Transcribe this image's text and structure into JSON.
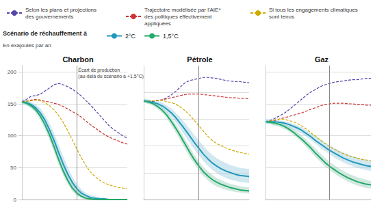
{
  "chart_data": [
    {
      "type": "line",
      "title": "Charbon",
      "y_label": "En exajoules par an",
      "legend": "top",
      "legend_title": "Scénario de réchauffement à",
      "grid": true,
      "tick_labels": "y",
      "x": [
        0,
        1,
        2,
        3,
        4,
        5,
        6,
        7,
        8,
        9,
        10,
        11,
        12,
        13,
        14,
        15,
        16,
        17,
        18,
        19,
        20,
        21,
        22,
        23
      ],
      "xlim": [
        0,
        23
      ],
      "ylim": [
        0,
        210
      ],
      "yticks": [
        0,
        50,
        100,
        150,
        200
      ],
      "vline": 12,
      "annotations": [
        {
          "text": "Écart de production\n(au-delà du scénario à +1,5°C)",
          "x": 12
        }
      ],
      "series": [
        {
          "name": "Selon les plans et projections\ndes gouvernements",
          "color": "#5544aa",
          "line_style": "dashed",
          "values": [
            153,
            157,
            162,
            163,
            165,
            170,
            175,
            180,
            182,
            180,
            177,
            173,
            168,
            162,
            155,
            148,
            140,
            132,
            124,
            116,
            110,
            105,
            100,
            96
          ]
        },
        {
          "name": "Trajectoire modélisée par l'AIE*\ndes politiques effectivement\nappliquées",
          "color": "#cc3333",
          "line_style": "dashed",
          "values": [
            153,
            154,
            156,
            157,
            156,
            154,
            153,
            151,
            149,
            146,
            142,
            138,
            134,
            129,
            123,
            117,
            112,
            107,
            102,
            98,
            95,
            92,
            89,
            87
          ]
        },
        {
          "name": "Si tous les engagements climatiques\nsont tenus",
          "color": "#ccaa00",
          "line_style": "dashed",
          "values": [
            153,
            154,
            155,
            156,
            155,
            152,
            147,
            141,
            132,
            121,
            108,
            94,
            79,
            65,
            53,
            43,
            36,
            30,
            26,
            23,
            21,
            19,
            18,
            17
          ]
        },
        {
          "name": "2°C",
          "color": "#2299bb",
          "line_style": "solid",
          "band_color": "#99ccdd",
          "values": [
            153,
            152,
            149,
            144,
            136,
            125,
            110,
            93,
            74,
            56,
            40,
            27,
            17,
            10,
            6,
            3,
            2,
            1,
            1,
            0,
            0,
            0,
            0,
            0
          ],
          "upper": [
            157,
            156,
            153,
            149,
            143,
            133,
            120,
            104,
            86,
            68,
            51,
            36,
            24,
            16,
            10,
            7,
            5,
            3,
            2,
            1,
            1,
            0,
            0,
            0
          ],
          "lower": [
            150,
            148,
            144,
            138,
            129,
            117,
            100,
            82,
            63,
            46,
            31,
            19,
            11,
            5,
            2,
            0,
            0,
            0,
            0,
            0,
            0,
            0,
            0,
            0
          ]
        },
        {
          "name": "1,5°C",
          "color": "#22aa66",
          "line_style": "solid",
          "band_color": "#99ccbb",
          "values": [
            153,
            151,
            147,
            141,
            131,
            118,
            102,
            83,
            63,
            45,
            30,
            18,
            10,
            5,
            2,
            1,
            0,
            0,
            0,
            0,
            0,
            0,
            0,
            0
          ],
          "upper": [
            157,
            155,
            151,
            146,
            137,
            125,
            110,
            92,
            72,
            54,
            38,
            25,
            15,
            8,
            4,
            2,
            1,
            0,
            0,
            0,
            0,
            0,
            0,
            0
          ],
          "lower": [
            150,
            148,
            143,
            136,
            125,
            111,
            94,
            75,
            55,
            38,
            24,
            13,
            6,
            2,
            0,
            0,
            0,
            0,
            0,
            0,
            0,
            0,
            0,
            0
          ]
        }
      ]
    },
    {
      "type": "line",
      "title": "Pétrole",
      "grid": true,
      "tick_labels": false,
      "x": [
        0,
        1,
        2,
        3,
        4,
        5,
        6,
        7,
        8,
        9,
        10,
        11,
        12,
        13,
        14,
        15,
        16,
        17,
        18,
        19,
        20,
        21,
        22,
        23
      ],
      "xlim": [
        0,
        23
      ],
      "ylim": [
        0,
        250
      ],
      "yticks": [
        0,
        50,
        100,
        150,
        200
      ],
      "vline": 12,
      "series": [
        {
          "name": "Selon les plans et projections\ndes gouvernements",
          "color": "#5544aa",
          "line_style": "dashed",
          "values": [
            184,
            183,
            183,
            185,
            186,
            190,
            195,
            202,
            210,
            218,
            222,
            224,
            226,
            228,
            228,
            227,
            226,
            224,
            222,
            221,
            220,
            220,
            219,
            218
          ]
        },
        {
          "name": "Trajectoire modélisée par l'AIE*\ndes politiques effectivement\nappliquées",
          "color": "#cc3333",
          "line_style": "dashed",
          "values": [
            184,
            184,
            184,
            185,
            186,
            188,
            190,
            192,
            194,
            196,
            197,
            197,
            197,
            196,
            195,
            194,
            193,
            192,
            191,
            190,
            190,
            189,
            189,
            188
          ]
        },
        {
          "name": "Si tous les engagements climatiques\nsont tenus",
          "color": "#ccaa00",
          "line_style": "dashed",
          "values": [
            184,
            184,
            184,
            185,
            185,
            183,
            181,
            178,
            173,
            166,
            158,
            148,
            138,
            128,
            118,
            110,
            104,
            100,
            96,
            93,
            90,
            88,
            86,
            85
          ]
        },
        {
          "name": "2°C",
          "color": "#2299bb",
          "line_style": "solid",
          "band_color": "#99ccdd",
          "values": [
            184,
            183,
            181,
            179,
            175,
            169,
            162,
            153,
            142,
            131,
            119,
            107,
            96,
            85,
            76,
            68,
            62,
            57,
            53,
            50,
            47,
            45,
            44,
            43
          ],
          "upper": [
            188,
            187,
            185,
            184,
            181,
            176,
            170,
            162,
            153,
            143,
            132,
            121,
            111,
            100,
            91,
            83,
            77,
            72,
            68,
            64,
            62,
            59,
            58,
            57
          ],
          "lower": [
            181,
            179,
            177,
            174,
            169,
            162,
            154,
            144,
            132,
            119,
            107,
            94,
            83,
            72,
            63,
            55,
            49,
            44,
            40,
            37,
            35,
            33,
            32,
            31
          ]
        },
        {
          "name": "1,5°C",
          "color": "#22aa66",
          "line_style": "solid",
          "band_color": "#99ccbb",
          "values": [
            184,
            182,
            179,
            174,
            167,
            158,
            146,
            133,
            119,
            104,
            89,
            75,
            63,
            52,
            44,
            37,
            32,
            28,
            25,
            22,
            20,
            18,
            17,
            16
          ],
          "upper": [
            188,
            186,
            183,
            179,
            172,
            164,
            153,
            141,
            128,
            113,
            98,
            84,
            72,
            61,
            53,
            46,
            40,
            36,
            32,
            29,
            27,
            25,
            24,
            23
          ],
          "lower": [
            181,
            179,
            175,
            169,
            162,
            152,
            139,
            125,
            110,
            95,
            80,
            67,
            55,
            44,
            36,
            29,
            24,
            21,
            18,
            16,
            14,
            13,
            12,
            11
          ]
        }
      ]
    },
    {
      "type": "line",
      "title": "Gaz",
      "grid": true,
      "tick_labels": false,
      "x": [
        0,
        1,
        2,
        3,
        4,
        5,
        6,
        7,
        8,
        9,
        10,
        11,
        12,
        13,
        14,
        15,
        16,
        17,
        18,
        19,
        20,
        21,
        22,
        23
      ],
      "xlim": [
        0,
        23
      ],
      "ylim": [
        0,
        210
      ],
      "yticks": [
        0,
        50,
        100,
        150,
        200
      ],
      "vline": 14,
      "series": [
        {
          "name": "Selon les plans et projections\ndes gouvernements",
          "color": "#5544aa",
          "line_style": "dashed",
          "values": [
            122,
            124,
            127,
            131,
            135,
            140,
            146,
            152,
            158,
            164,
            169,
            173,
            177,
            180,
            182,
            184,
            185,
            186,
            187,
            188,
            188,
            189,
            190,
            190
          ]
        },
        {
          "name": "Trajectoire modélisée par l'AIE*\ndes politiques effectivement\nappliquées",
          "color": "#cc3333",
          "line_style": "dashed",
          "values": [
            122,
            123,
            124,
            126,
            128,
            130,
            132,
            134,
            136,
            139,
            142,
            144,
            147,
            149,
            150,
            151,
            151,
            151,
            150,
            150,
            149,
            149,
            148,
            148
          ]
        },
        {
          "name": "Si tous les engagements climatiques\nsont tenus",
          "color": "#ccaa00",
          "line_style": "dashed",
          "values": [
            122,
            123,
            125,
            126,
            126,
            124,
            122,
            119,
            115,
            110,
            104,
            99,
            93,
            88,
            83,
            79,
            75,
            72,
            69,
            67,
            65,
            63,
            62,
            61
          ]
        },
        {
          "name": "2°C",
          "color": "#2299bb",
          "line_style": "solid",
          "band_color": "#99ccdd",
          "values": [
            122,
            122,
            122,
            121,
            120,
            118,
            115,
            112,
            108,
            103,
            98,
            92,
            87,
            82,
            77,
            73,
            69,
            65,
            62,
            59,
            57,
            55,
            53,
            52
          ],
          "upper": [
            126,
            126,
            125,
            124,
            123,
            121,
            119,
            116,
            113,
            108,
            104,
            99,
            94,
            89,
            85,
            81,
            77,
            74,
            71,
            68,
            66,
            64,
            62,
            61
          ],
          "lower": [
            119,
            118,
            117,
            116,
            115,
            113,
            110,
            107,
            103,
            98,
            93,
            87,
            81,
            76,
            71,
            66,
            62,
            58,
            55,
            52,
            50,
            48,
            46,
            45
          ]
        },
        {
          "name": "1,5°C",
          "color": "#22aa66",
          "line_style": "solid",
          "band_color": "#99ccbb",
          "values": [
            122,
            121,
            120,
            118,
            115,
            111,
            106,
            100,
            94,
            87,
            80,
            72,
            65,
            58,
            52,
            47,
            42,
            38,
            34,
            31,
            28,
            26,
            24,
            23
          ],
          "upper": [
            126,
            125,
            124,
            122,
            119,
            116,
            111,
            106,
            100,
            93,
            86,
            79,
            72,
            65,
            59,
            54,
            49,
            45,
            41,
            38,
            35,
            33,
            31,
            29
          ],
          "lower": [
            119,
            118,
            116,
            114,
            111,
            107,
            102,
            96,
            89,
            82,
            74,
            66,
            59,
            52,
            46,
            41,
            36,
            32,
            28,
            25,
            22,
            20,
            18,
            17
          ]
        }
      ]
    }
  ]
}
